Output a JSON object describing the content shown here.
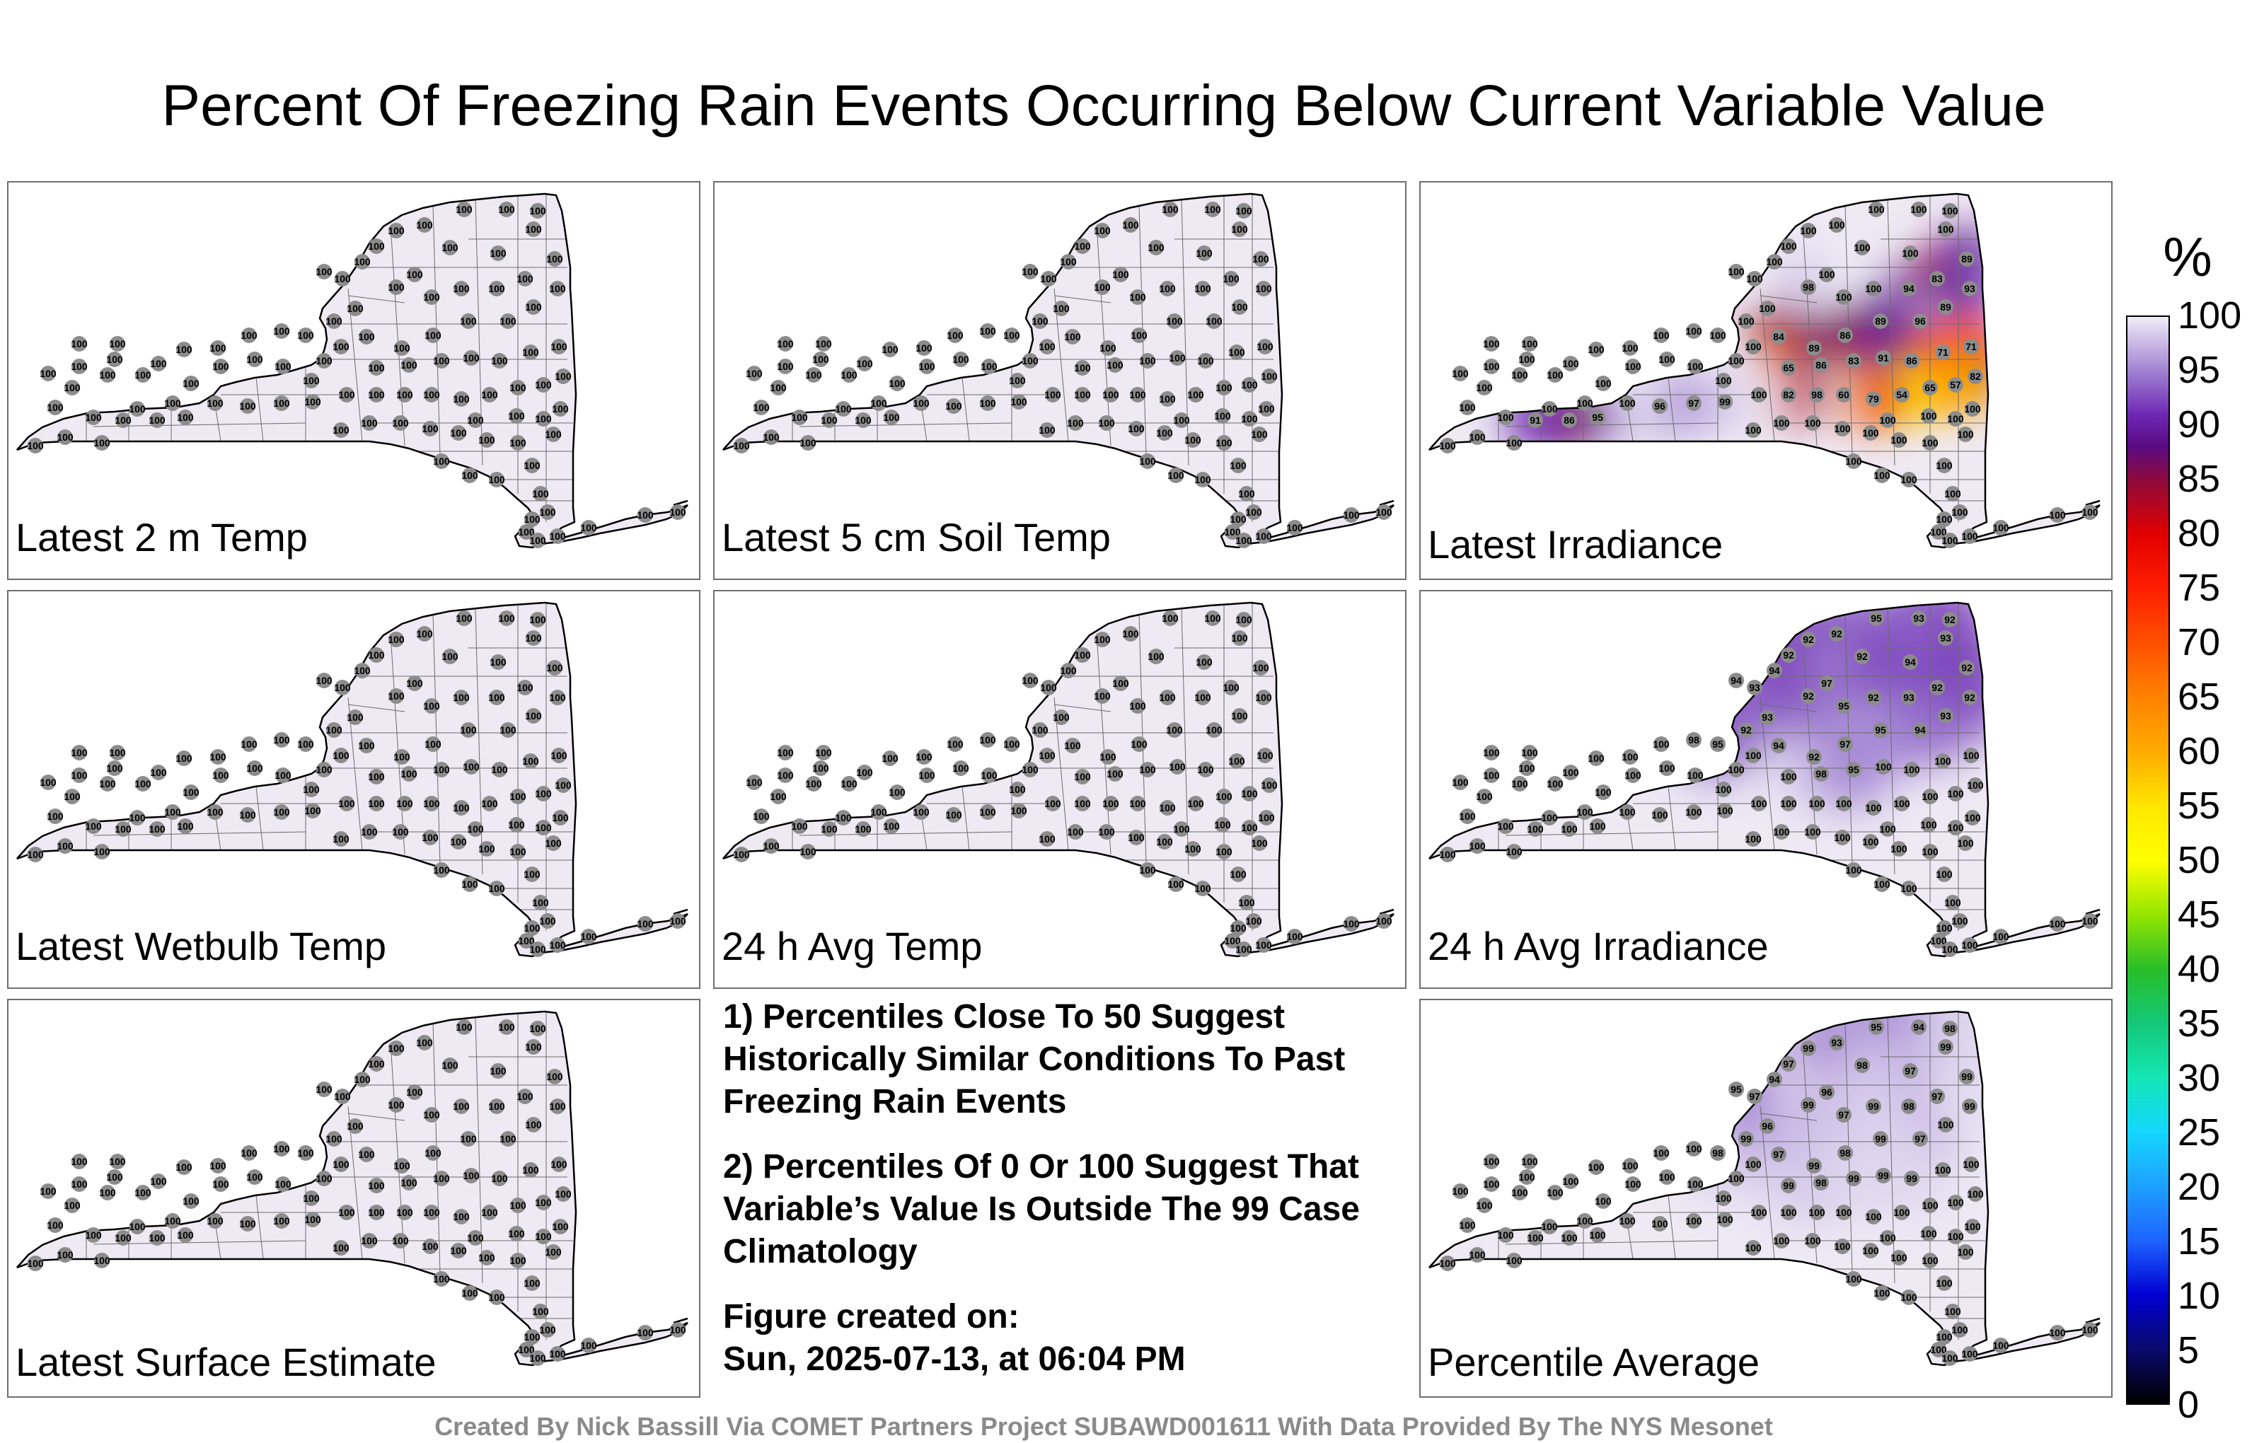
{
  "title": "Percent Of Freezing Rain Events Occurring Below Current Variable Value",
  "colorbar": {
    "unit": "%",
    "ticks": [
      "100",
      "95",
      "90",
      "85",
      "80",
      "75",
      "70",
      "65",
      "60",
      "55",
      "50",
      "45",
      "40",
      "35",
      "30",
      "25",
      "20",
      "15",
      "10",
      "5",
      "0"
    ],
    "stops": [
      {
        "v": 0,
        "c": "#000000"
      },
      {
        "v": 5,
        "c": "#0a0a6e"
      },
      {
        "v": 10,
        "c": "#0000d2"
      },
      {
        "v": 15,
        "c": "#1e64ff"
      },
      {
        "v": 20,
        "c": "#1ea0ff"
      },
      {
        "v": 25,
        "c": "#14d7ff"
      },
      {
        "v": 30,
        "c": "#14e6b4"
      },
      {
        "v": 35,
        "c": "#14c878"
      },
      {
        "v": 40,
        "c": "#28be28"
      },
      {
        "v": 45,
        "c": "#96e600"
      },
      {
        "v": 50,
        "c": "#ffff00"
      },
      {
        "v": 55,
        "c": "#ffe600"
      },
      {
        "v": 60,
        "c": "#ffaa00"
      },
      {
        "v": 65,
        "c": "#ff8200"
      },
      {
        "v": 70,
        "c": "#ff5000"
      },
      {
        "v": 75,
        "c": "#ff1e00"
      },
      {
        "v": 80,
        "c": "#e10000"
      },
      {
        "v": 85,
        "c": "#8c0a3c"
      },
      {
        "v": 88,
        "c": "#5a0a82"
      },
      {
        "v": 91,
        "c": "#6e28b4"
      },
      {
        "v": 95,
        "c": "#a082d2"
      },
      {
        "v": 100,
        "c": "#f0ecf6"
      }
    ]
  },
  "panels": [
    {
      "label": "Latest 2 m Temp",
      "mode": "uniform"
    },
    {
      "label": "Latest 5 cm Soil Temp",
      "mode": "uniform"
    },
    {
      "label": "Latest Irradiance",
      "mode": "irradiance",
      "values": [
        "98",
        "100",
        "100",
        "94",
        "83",
        "89",
        "93",
        "89",
        "96",
        "89",
        "86",
        "89",
        "84",
        "65",
        "86",
        "83",
        "91",
        "86",
        "71",
        "71",
        "82",
        "57",
        "65",
        "54",
        "79",
        "60",
        "98",
        "82",
        "100",
        "99",
        "97",
        "96",
        "100",
        "95",
        "86",
        "91"
      ]
    },
    {
      "label": "Latest Wetbulb Temp",
      "mode": "uniform"
    },
    {
      "label": "24 h Avg Temp",
      "mode": "uniform"
    },
    {
      "label": "24 h Avg Irradiance",
      "mode": "avg_irradiance",
      "values": [
        "100",
        "98",
        "95",
        "92",
        "93",
        "93",
        "94",
        "94",
        "92",
        "92",
        "92",
        "95",
        "93",
        "92",
        "93",
        "94",
        "92",
        "97",
        "92",
        "95",
        "92",
        "93",
        "92",
        "92",
        "92",
        "93",
        "94",
        "95",
        "97",
        "92",
        "94",
        "100",
        "98",
        "95"
      ]
    },
    {
      "label": "Latest Surface Estimate",
      "mode": "uniform"
    },
    null,
    {
      "label": "Percentile Average",
      "mode": "average",
      "values": [
        "100",
        "100",
        "98",
        "99",
        "96",
        "97",
        "95",
        "94",
        "97",
        "99",
        "93",
        "95",
        "94",
        "98",
        "99",
        "97",
        "98",
        "96",
        "99",
        "97",
        "99",
        "98",
        "97",
        "99",
        "99",
        "100",
        "97",
        "99",
        "98",
        "99",
        "97",
        "99",
        "98",
        "99",
        "99",
        "99"
      ]
    }
  ],
  "notes": [
    "1) Percentiles Close To 50 Suggest Historically Similar Conditions To Past Freezing Rain Events",
    "2) Percentiles Of 0 Or 100 Suggest That Variable’s Value Is Outside The 99 Case Climatology"
  ],
  "created": {
    "label": "Figure created on:",
    "date": "Sun, 2025-07-13, at 06:04 PM"
  },
  "credit": "Created By Nick Bassill Via COMET Partners Project SUBAWD001611 With Data Provided By The NYS Mesonet"
}
